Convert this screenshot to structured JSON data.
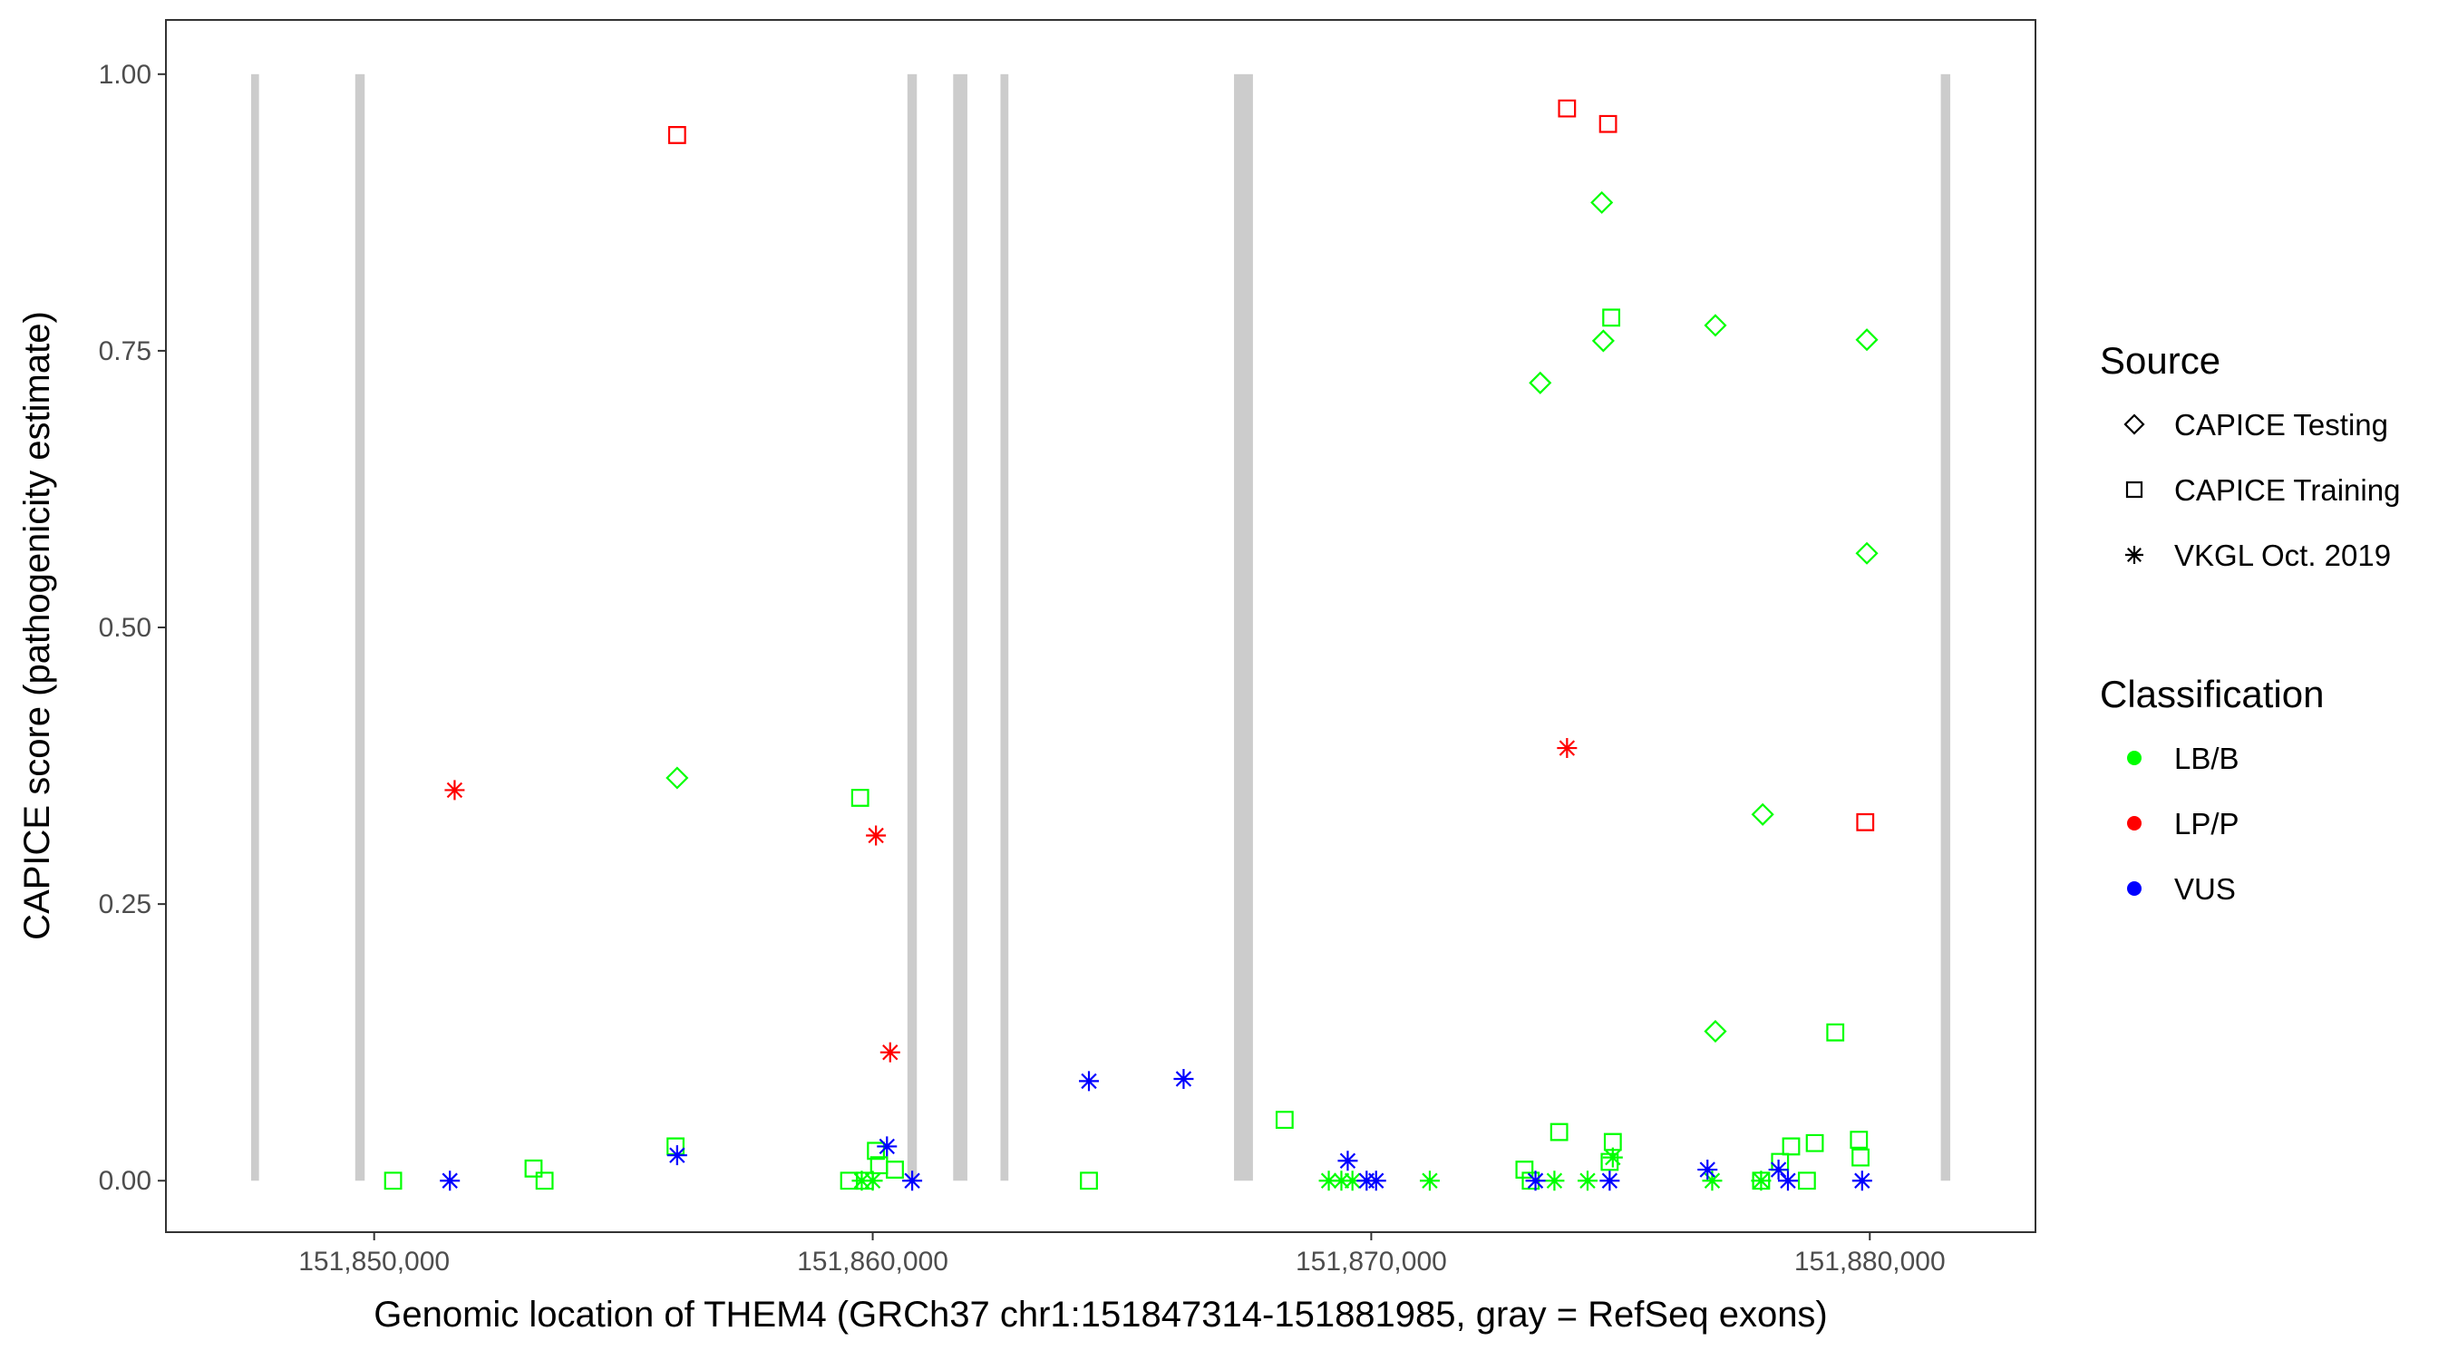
{
  "chart_data": {
    "type": "scatter",
    "x_label": "Genomic location of THEM4 (GRCh37 chr1:151847314-151881985, gray = RefSeq exons)",
    "y_label": "CAPICE score (pathogenicity estimate)",
    "xlim": [
      151845823,
      151883323
    ],
    "ylim": [
      -0.0465,
      1.049
    ],
    "xticks": [
      {
        "value": 151850000,
        "label": "151,850,000"
      },
      {
        "value": 151860000,
        "label": "151,860,000"
      },
      {
        "value": 151870000,
        "label": "151,870,000"
      },
      {
        "value": 151880000,
        "label": "151,880,000"
      }
    ],
    "yticks": [
      {
        "value": 0,
        "label": "0.00"
      },
      {
        "value": 0.25,
        "label": "0.25"
      },
      {
        "value": 0.5,
        "label": "0.50"
      },
      {
        "value": 0.75,
        "label": "0.75"
      },
      {
        "value": 1,
        "label": "1.00"
      }
    ],
    "grid": false,
    "exon_color": "#cccccc",
    "exons": [
      [
        151847532,
        151847690
      ],
      [
        151849620,
        151849810
      ],
      [
        151860696,
        151860886
      ],
      [
        151861614,
        151861899
      ],
      [
        151862563,
        151862722
      ],
      [
        151867247,
        151867627
      ],
      [
        151881424,
        151881614
      ]
    ],
    "legend_source_title": "Source",
    "legend_class_title": "Classification",
    "classification": [
      {
        "name": "LB/B",
        "color": "#00ff00"
      },
      {
        "name": "LP/P",
        "color": "#ff0000"
      },
      {
        "name": "VUS",
        "color": "#0000ff"
      }
    ],
    "series": [
      {
        "name": "CAPICE Testing",
        "shape": "diamond",
        "x": [
          151856077,
          151874624,
          151873389,
          151874655,
          151876903,
          151879941,
          151879941,
          151877852,
          151876903
        ],
        "values": [
          0.364,
          0.884,
          0.721,
          0.759,
          0.773,
          0.76,
          0.567,
          0.331,
          0.135
        ],
        "classes": [
          "LB/B",
          "LB/B",
          "LB/B",
          "LB/B",
          "LB/B",
          "LB/B",
          "LB/B",
          "LB/B",
          "LB/B"
        ]
      },
      {
        "name": "CAPICE Training",
        "shape": "square",
        "x": [
          151856077,
          151873927,
          151874750,
          151879909,
          151850380,
          151853197,
          151853418,
          151856045,
          151859748,
          151860065,
          151860128,
          151860445,
          151859527,
          151859843,
          151864337,
          151868262,
          151873073,
          151873199,
          151873769,
          151874814,
          151874845,
          151874782,
          151879308,
          151878896,
          151878422,
          151878200,
          151878738,
          151879782,
          151879814,
          151877820
        ],
        "values": [
          0.945,
          0.969,
          0.955,
          0.324,
          0,
          0.011,
          0,
          0.031,
          0.346,
          0.027,
          0.014,
          0.01,
          0,
          0,
          0,
          0.055,
          0.01,
          0,
          0.044,
          0.78,
          0.035,
          0.017,
          0.134,
          0.034,
          0.031,
          0.017,
          0,
          0.037,
          0.021,
          0
        ],
        "classes": [
          "LP/P",
          "LP/P",
          "LP/P",
          "LP/P",
          "LB/B",
          "LB/B",
          "LB/B",
          "LB/B",
          "LB/B",
          "LB/B",
          "LB/B",
          "LB/B",
          "LB/B",
          "LB/B",
          "LB/B",
          "LB/B",
          "LB/B",
          "LB/B",
          "LB/B",
          "LB/B",
          "LB/B",
          "LB/B",
          "LB/B",
          "LB/B",
          "LB/B",
          "LB/B",
          "LB/B",
          "LB/B",
          "LB/B",
          "LB/B"
        ]
      },
      {
        "name": "VKGL Oct. 2019",
        "shape": "star",
        "x": [
          151859780,
          151860000,
          151869148,
          151869401,
          151869623,
          151871174,
          151873674,
          151874339,
          151874845,
          151876839,
          151877820,
          151851614,
          151860065,
          151860350,
          151873927,
          151851519,
          151856077,
          151860286,
          151860792,
          151864337,
          151866236,
          151869528,
          151869907,
          151870097,
          151873294,
          151874782,
          151876744,
          151878169,
          151878358,
          151879846
        ],
        "values": [
          0,
          0,
          0,
          0,
          0,
          0,
          0,
          0,
          0.021,
          0,
          0,
          0.353,
          0.312,
          0.116,
          0.391,
          0,
          0.023,
          0.031,
          0,
          0.09,
          0.092,
          0.018,
          0,
          0,
          0,
          0,
          0.01,
          0.01,
          0,
          0
        ],
        "classes": [
          "LB/B",
          "LB/B",
          "LB/B",
          "LB/B",
          "LB/B",
          "LB/B",
          "LB/B",
          "LB/B",
          "LB/B",
          "LB/B",
          "LB/B",
          "LP/P",
          "LP/P",
          "LP/P",
          "LP/P",
          "VUS",
          "VUS",
          "VUS",
          "VUS",
          "VUS",
          "VUS",
          "VUS",
          "VUS",
          "VUS",
          "VUS",
          "VUS",
          "VUS",
          "VUS",
          "VUS",
          "VUS"
        ]
      }
    ]
  }
}
